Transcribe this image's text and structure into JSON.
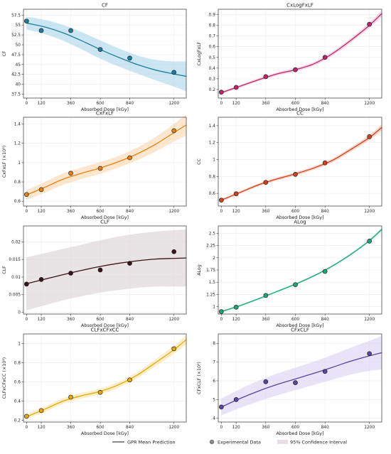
{
  "chart_data": [
    {
      "type": "line",
      "title": "CF",
      "xlabel": "Absorbed Dose [kGy]",
      "ylabel": "CF",
      "color": "#1b7f9e",
      "band_color": "#a9d6ea",
      "xlim": [
        -25,
        1300
      ],
      "ylim": [
        36.5,
        59
      ],
      "x_ticks": [
        0,
        120,
        360,
        600,
        840,
        1200
      ],
      "y_ticks": [
        37.5,
        40,
        42.5,
        45,
        47.5,
        50,
        52.5,
        55,
        57.5
      ],
      "y_tick_labels": [
        "37.5",
        "40",
        "42.5",
        "45",
        "47.5",
        "50",
        "52.5",
        "55",
        "57.5"
      ],
      "points_x": [
        0,
        120,
        360,
        600,
        840,
        1200
      ],
      "points_y": [
        56.0,
        53.6,
        53.6,
        48.8,
        46.6,
        43.0
      ],
      "curve_x": [
        0,
        150,
        300,
        450,
        600,
        750,
        900,
        1050,
        1200,
        1300
      ],
      "curve_y": [
        55.5,
        54.5,
        53.0,
        51.0,
        48.8,
        46.8,
        45.0,
        43.6,
        42.6,
        42.0
      ],
      "ci_half": [
        1.6,
        1.8,
        2.0,
        2.2,
        2.3,
        2.3,
        2.3,
        2.6,
        3.2,
        3.8
      ]
    },
    {
      "type": "line",
      "title": "CxLogFxLF",
      "xlabel": "Absorbed Dose [kGy]",
      "ylabel": "CxLogFxLF",
      "color": "#c0256b",
      "band_color": "#f0b9d3",
      "xlim": [
        -25,
        1300
      ],
      "ylim": [
        0.12,
        0.95
      ],
      "x_ticks": [
        0,
        120,
        360,
        600,
        840,
        1200
      ],
      "y_ticks": [
        0.2,
        0.3,
        0.4,
        0.5,
        0.6,
        0.7,
        0.8,
        0.9
      ],
      "y_tick_labels": [
        "0.2",
        "0.3",
        "0.4",
        "0.5",
        "0.6",
        "0.7",
        "0.8",
        "0.9"
      ],
      "points_x": [
        0,
        120,
        360,
        600,
        840,
        1200
      ],
      "points_y": [
        0.175,
        0.22,
        0.32,
        0.385,
        0.5,
        0.81
      ],
      "curve_x": [
        0,
        150,
        300,
        450,
        600,
        750,
        900,
        1050,
        1200,
        1300
      ],
      "curve_y": [
        0.17,
        0.23,
        0.29,
        0.345,
        0.385,
        0.44,
        0.535,
        0.66,
        0.8,
        0.91
      ],
      "ci_half": [
        0.012,
        0.013,
        0.014,
        0.015,
        0.016,
        0.017,
        0.018,
        0.02,
        0.024,
        0.03
      ]
    },
    {
      "type": "line",
      "title": "CxFxLF",
      "xlabel": "Absorbed Dose [kGy]",
      "ylabel": "CxFxLF (×10³)",
      "color": "#e8820e",
      "band_color": "#fbd6ad",
      "xlim": [
        -25,
        1300
      ],
      "ylim": [
        0.55,
        1.47
      ],
      "x_ticks": [
        0,
        120,
        360,
        600,
        840,
        1200
      ],
      "y_ticks": [
        0.6,
        0.8,
        1.0,
        1.2,
        1.4
      ],
      "y_tick_labels": [
        "0.6",
        "0.8",
        "1",
        "1.2",
        "1.4"
      ],
      "points_x": [
        0,
        120,
        360,
        600,
        840,
        1200
      ],
      "points_y": [
        0.67,
        0.72,
        0.89,
        0.94,
        1.05,
        1.33
      ],
      "curve_x": [
        0,
        150,
        300,
        450,
        600,
        750,
        900,
        1050,
        1200,
        1300
      ],
      "curve_y": [
        0.665,
        0.745,
        0.83,
        0.89,
        0.945,
        1.01,
        1.09,
        1.19,
        1.31,
        1.39
      ],
      "ci_half": [
        0.05,
        0.055,
        0.06,
        0.06,
        0.06,
        0.06,
        0.065,
        0.075,
        0.09,
        0.11
      ]
    },
    {
      "type": "line",
      "title": "CC",
      "xlabel": "Absorbed Dose [kGy]",
      "ylabel": "CC",
      "color": "#d6401c",
      "band_color": "#f6b9a6",
      "xlim": [
        -25,
        1300
      ],
      "ylim": [
        0.45,
        1.5
      ],
      "x_ticks": [
        0,
        120,
        360,
        600,
        840,
        1200
      ],
      "y_ticks": [
        0.6,
        0.8,
        1.0,
        1.2,
        1.4
      ],
      "y_tick_labels": [
        "0.6",
        "0.8",
        "1",
        "1.2",
        "1.4"
      ],
      "points_x": [
        0,
        120,
        360,
        600,
        840,
        1200
      ],
      "points_y": [
        0.52,
        0.595,
        0.73,
        0.825,
        0.96,
        1.27
      ],
      "curve_x": [
        0,
        150,
        300,
        450,
        600,
        750,
        900,
        1050,
        1200,
        1300
      ],
      "curve_y": [
        0.52,
        0.61,
        0.7,
        0.77,
        0.83,
        0.9,
        0.99,
        1.12,
        1.26,
        1.38
      ],
      "ci_half": [
        0.015,
        0.016,
        0.017,
        0.018,
        0.019,
        0.02,
        0.022,
        0.025,
        0.03,
        0.035
      ]
    },
    {
      "type": "line",
      "title": "CLF",
      "xlabel": "Absorbed Dose [kGy]",
      "ylabel": "CLF",
      "color": "#3a1418",
      "band_color": "#d9d0d2",
      "xlim": [
        -25,
        1300
      ],
      "ylim": [
        -0.0005,
        0.0245
      ],
      "x_ticks": [
        0,
        120,
        360,
        600,
        840,
        1200
      ],
      "y_ticks": [
        0,
        0.005,
        0.01,
        0.015,
        0.02
      ],
      "y_tick_labels": [
        "0",
        "0.005",
        "0.01",
        "0.015",
        "0.02"
      ],
      "points_x": [
        0,
        120,
        360,
        600,
        840,
        1200
      ],
      "points_y": [
        0.008,
        0.0093,
        0.0111,
        0.012,
        0.0139,
        0.0172
      ],
      "curve_x": [
        0,
        150,
        300,
        450,
        600,
        750,
        900,
        1050,
        1200,
        1300
      ],
      "curve_y": [
        0.0081,
        0.0094,
        0.0107,
        0.0119,
        0.013,
        0.0139,
        0.0146,
        0.0151,
        0.0153,
        0.0154
      ],
      "ci_half": [
        0.0075,
        0.0074,
        0.0073,
        0.0073,
        0.0074,
        0.0076,
        0.0077,
        0.0078,
        0.008,
        0.0081
      ]
    },
    {
      "type": "line",
      "title": "ALog",
      "xlabel": "Absorbed Dose [kGy]",
      "ylabel": "ALog",
      "color": "#1aa77d",
      "band_color": "#b4e6d3",
      "xlim": [
        -25,
        1300
      ],
      "ylim": [
        0.85,
        2.65
      ],
      "x_ticks": [
        0,
        120,
        360,
        600,
        840,
        1200
      ],
      "y_ticks": [
        1.0,
        1.25,
        1.5,
        1.75,
        2.0,
        2.25,
        2.5
      ],
      "y_tick_labels": [
        "1",
        "1.25",
        "1.5",
        "1.75",
        "2",
        "2.25",
        "2.5"
      ],
      "points_x": [
        0,
        120,
        360,
        600,
        840,
        1200
      ],
      "points_y": [
        0.9,
        0.99,
        1.23,
        1.45,
        1.72,
        2.34
      ],
      "curve_x": [
        0,
        150,
        300,
        450,
        600,
        750,
        900,
        1050,
        1200,
        1300
      ],
      "curve_y": [
        0.9,
        1.02,
        1.16,
        1.31,
        1.46,
        1.63,
        1.83,
        2.07,
        2.35,
        2.58
      ],
      "ci_half": [
        0.02,
        0.02,
        0.02,
        0.02,
        0.02,
        0.02,
        0.022,
        0.025,
        0.03,
        0.04
      ]
    },
    {
      "type": "line",
      "title": "CLFxCFxCC",
      "xlabel": "Absorbed Dose [kGy]",
      "ylabel": "CLFxCFxCC (×10³)",
      "color": "#e6a900",
      "band_color": "#fbe3a6",
      "xlim": [
        -25,
        1300
      ],
      "ylim": [
        0.18,
        1.1
      ],
      "x_ticks": [
        0,
        120,
        360,
        600,
        840,
        1200
      ],
      "y_ticks": [
        0.2,
        0.4,
        0.6,
        0.8,
        1.0
      ],
      "y_tick_labels": [
        "0.2",
        "0.4",
        "0.6",
        "0.8",
        "1"
      ],
      "points_x": [
        0,
        120,
        360,
        600,
        840,
        1200
      ],
      "points_y": [
        0.24,
        0.3,
        0.44,
        0.49,
        0.62,
        0.945
      ],
      "curve_x": [
        0,
        150,
        300,
        450,
        600,
        750,
        900,
        1050,
        1200,
        1300
      ],
      "curve_y": [
        0.235,
        0.315,
        0.4,
        0.455,
        0.5,
        0.57,
        0.67,
        0.8,
        0.935,
        1.04
      ],
      "ci_half": [
        0.025,
        0.028,
        0.03,
        0.03,
        0.03,
        0.03,
        0.032,
        0.036,
        0.042,
        0.05
      ]
    },
    {
      "type": "line",
      "title": "CFxCLF",
      "xlabel": "Absorbed Dose [kGy]",
      "ylabel": "CFxCLF (×10²)",
      "color": "#5a44a6",
      "band_color": "#d8d0f0",
      "xlim": [
        -25,
        1300
      ],
      "ylim": [
        3.8,
        8.5
      ],
      "x_ticks": [
        0,
        120,
        360,
        600,
        840,
        1200
      ],
      "y_ticks": [
        4,
        5,
        6,
        7,
        8
      ],
      "y_tick_labels": [
        "4",
        "5",
        "6",
        "7",
        "8"
      ],
      "points_x": [
        0,
        120,
        360,
        600,
        840,
        1200
      ],
      "points_y": [
        4.6,
        5.0,
        5.95,
        5.9,
        6.5,
        7.45
      ],
      "curve_x": [
        0,
        150,
        300,
        450,
        600,
        750,
        900,
        1050,
        1200,
        1300
      ],
      "curve_y": [
        4.6,
        5.05,
        5.45,
        5.8,
        6.1,
        6.4,
        6.72,
        7.05,
        7.33,
        7.5
      ],
      "ci_half": [
        0.45,
        0.5,
        0.55,
        0.58,
        0.6,
        0.62,
        0.66,
        0.72,
        0.8,
        0.9
      ]
    }
  ],
  "legend": {
    "placement": "bottom-center",
    "entries": [
      {
        "label": "GPR Mean Prediction",
        "kind": "line"
      },
      {
        "label": "Experimental Data",
        "kind": "marker"
      },
      {
        "label": "95% Confidence Interval",
        "kind": "band"
      }
    ]
  }
}
